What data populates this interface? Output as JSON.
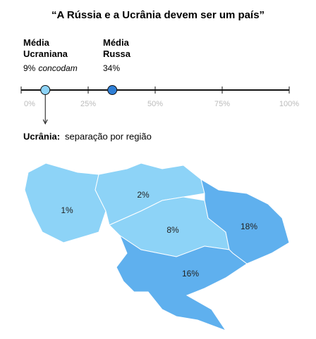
{
  "chart_data": [
    {
      "type": "dot",
      "title": "“A Rússia e a Ucrânia devem ser um país”",
      "series": [
        {
          "name": "Média Ucraniana",
          "color": "#8dd3f7",
          "values": [
            9
          ],
          "value_labels": [
            "9%"
          ],
          "note": "concodam"
        },
        {
          "name": "Média Russa",
          "color": "#2f7fd6",
          "values": [
            34
          ],
          "value_labels": [
            "34%"
          ]
        }
      ],
      "xlim": [
        0,
        100
      ],
      "xticks": [
        {
          "value": 0,
          "label": "0%"
        },
        {
          "value": 25,
          "label": "25%"
        },
        {
          "value": 50,
          "label": "50%"
        },
        {
          "value": 75,
          "label": "75%"
        },
        {
          "value": 100,
          "label": "100%"
        }
      ]
    },
    {
      "type": "map",
      "title_label": "Ucrânia:",
      "title": "separação por região",
      "values": [
        1,
        2,
        8,
        18,
        16
      ],
      "value_labels": [
        "1%",
        "2%",
        "8%",
        "18%",
        "16%"
      ],
      "colors": [
        "#8dd3f7",
        "#8dd3f7",
        "#8dd3f7",
        "#5fb0ee",
        "#5fb0ee"
      ]
    }
  ]
}
